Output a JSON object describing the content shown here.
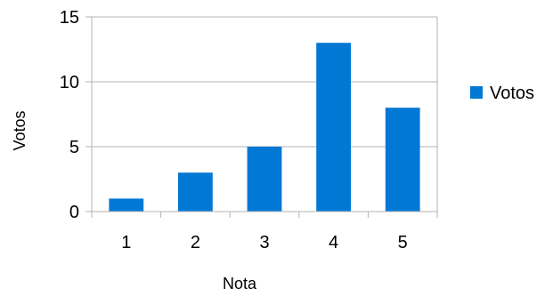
{
  "chart_data": {
    "type": "bar",
    "categories": [
      "1",
      "2",
      "3",
      "4",
      "5"
    ],
    "series": [
      {
        "name": "Votos",
        "values": [
          1,
          3,
          5,
          13,
          8
        ],
        "color": "#0078d4"
      }
    ],
    "title": "",
    "xlabel": "Nota",
    "ylabel": "Votos",
    "ylim": [
      0,
      15
    ],
    "yticks": [
      0,
      5,
      10,
      15
    ],
    "grid": true,
    "legend_position": "right"
  }
}
